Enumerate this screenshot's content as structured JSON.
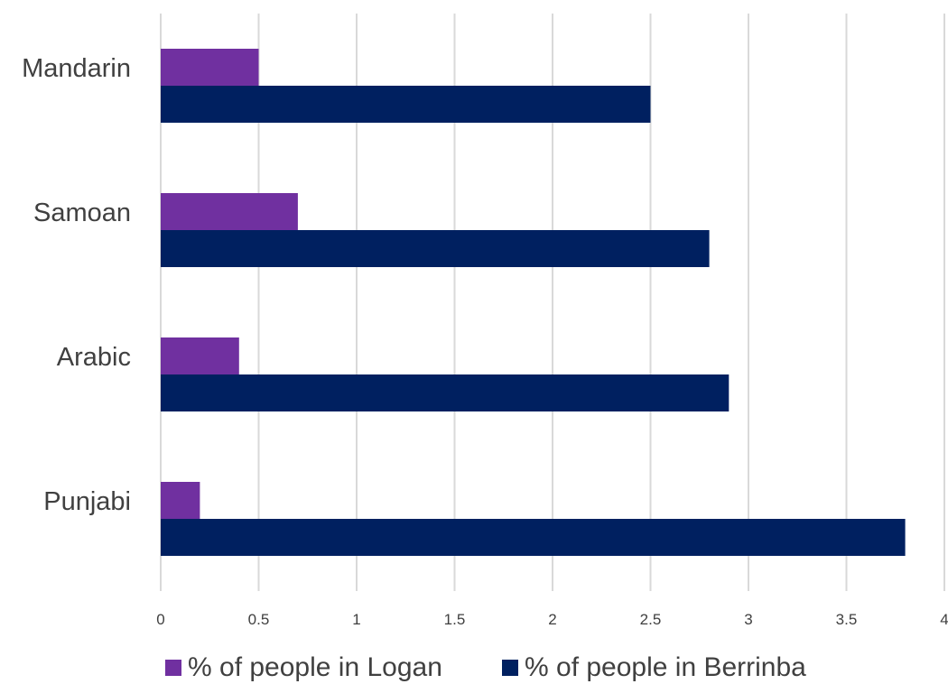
{
  "chart_data": {
    "type": "bar",
    "orientation": "horizontal",
    "categories": [
      "Mandarin",
      "Samoan",
      "Arabic",
      "Punjabi"
    ],
    "series": [
      {
        "name": "% of people in Logan",
        "values": [
          0.5,
          0.7,
          0.4,
          0.2
        ],
        "color": "#7030a0"
      },
      {
        "name": "% of people in Berrinba",
        "values": [
          2.5,
          2.8,
          2.9,
          3.8
        ],
        "color": "#002060"
      }
    ],
    "xlim": [
      0,
      4
    ],
    "xticks": [
      "0",
      "0.5",
      "1",
      "1.5",
      "2",
      "2.5",
      "3",
      "3.5",
      "4"
    ],
    "grid": true,
    "legend_position": "bottom",
    "title": "",
    "xlabel": "",
    "ylabel": ""
  }
}
